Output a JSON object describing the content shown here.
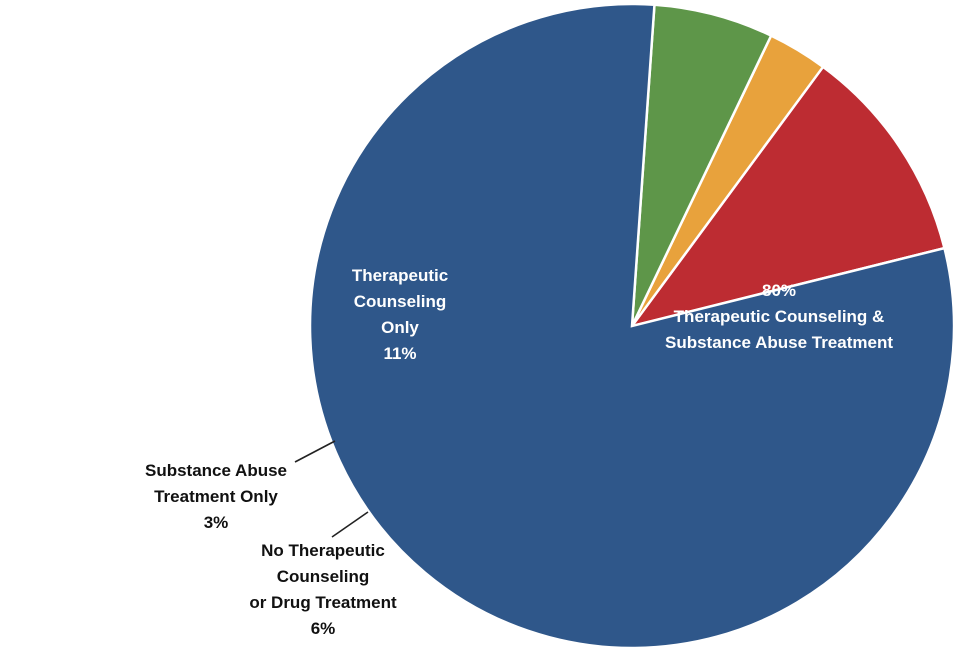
{
  "chart_data": {
    "type": "pie",
    "start_angle_deg": 14,
    "direction": "counterclockwise",
    "slices": [
      {
        "label_lines": [
          "Therapeutic",
          "Counseling",
          "Only",
          "11%"
        ],
        "category": "Therapeutic Counseling Only",
        "value": 11,
        "color": "#bd2c32",
        "label_position": "inside"
      },
      {
        "label_lines": [
          "Substance Abuse",
          "Treatment Only",
          "3%"
        ],
        "category": "Substance Abuse Treatment Only",
        "value": 3,
        "color": "#e8a23c",
        "label_position": "outside"
      },
      {
        "label_lines": [
          "No Therapeutic",
          "Counseling",
          "or Drug Treatment",
          "6%"
        ],
        "category": "No Therapeutic Counseling or Drug Treatment",
        "value": 6,
        "color": "#5e9649",
        "label_position": "outside"
      },
      {
        "label_lines": [
          "80%",
          "Therapeutic Counseling &",
          "Substance Abuse Treatment"
        ],
        "category": "Therapeutic Counseling & Substance Abuse Treatment",
        "value": 80,
        "color": "#2f578a",
        "label_position": "inside"
      }
    ],
    "legend": "none"
  }
}
